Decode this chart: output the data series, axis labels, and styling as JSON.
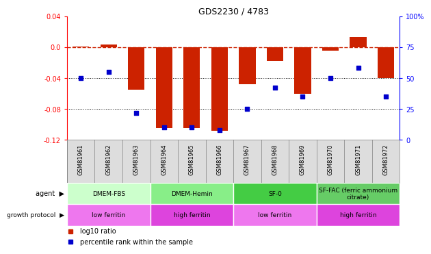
{
  "title": "GDS2230 / 4783",
  "categories": [
    "GSM81961",
    "GSM81962",
    "GSM81963",
    "GSM81964",
    "GSM81965",
    "GSM81966",
    "GSM81967",
    "GSM81968",
    "GSM81969",
    "GSM81970",
    "GSM81971",
    "GSM81972"
  ],
  "log10_ratio": [
    0.001,
    0.003,
    -0.055,
    -0.105,
    -0.105,
    -0.108,
    -0.048,
    -0.018,
    -0.06,
    -0.005,
    0.013,
    -0.04
  ],
  "percentile_rank": [
    50,
    55,
    22,
    10,
    10,
    8,
    25,
    42,
    35,
    50,
    58,
    35
  ],
  "ylim_left": [
    -0.12,
    0.04
  ],
  "ylim_right": [
    0,
    100
  ],
  "yticks_left": [
    -0.12,
    -0.08,
    -0.04,
    0.0,
    0.04
  ],
  "yticks_right": [
    0,
    25,
    50,
    75,
    100
  ],
  "bar_color": "#cc2200",
  "dot_color": "#0000cc",
  "hline_color": "#cc2200",
  "agent_groups": [
    {
      "label": "DMEM-FBS",
      "start": 0,
      "end": 2,
      "color": "#ccffcc"
    },
    {
      "label": "DMEM-Hemin",
      "start": 3,
      "end": 5,
      "color": "#88ee88"
    },
    {
      "label": "SF-0",
      "start": 6,
      "end": 8,
      "color": "#44cc44"
    },
    {
      "label": "SF-FAC (ferric ammonium\ncitrate)",
      "start": 9,
      "end": 11,
      "color": "#66cc66"
    }
  ],
  "protocol_groups": [
    {
      "label": "low ferritin",
      "start": 0,
      "end": 2,
      "color": "#ee77ee"
    },
    {
      "label": "high ferritin",
      "start": 3,
      "end": 5,
      "color": "#dd44dd"
    },
    {
      "label": "low ferritin",
      "start": 6,
      "end": 8,
      "color": "#ee77ee"
    },
    {
      "label": "high ferritin",
      "start": 9,
      "end": 11,
      "color": "#dd44dd"
    }
  ],
  "background_color": "#ffffff",
  "legend_items": [
    {
      "label": "log10 ratio",
      "color": "#cc2200"
    },
    {
      "label": "percentile rank within the sample",
      "color": "#0000cc"
    }
  ]
}
